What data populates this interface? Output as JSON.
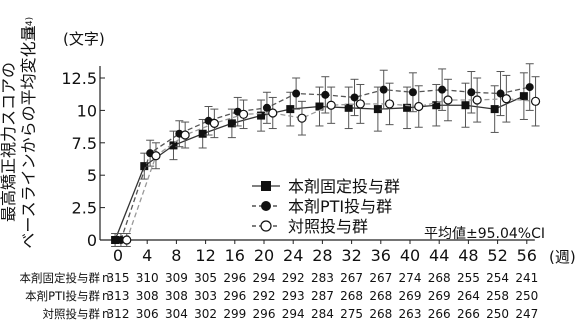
{
  "chart_data": {
    "type": "line",
    "ylabel_line1": "最高矯正視力スコアの",
    "ylabel_line2": "ベースラインからの平均変化量",
    "ylabel_note": "注4)",
    "yunit": "(文字)",
    "xunit": "(週)",
    "ylim": [
      0,
      12.5
    ],
    "yticks": [
      0,
      2.5,
      5,
      7.5,
      10,
      12.5
    ],
    "ytick_labels": [
      "0",
      "2.5",
      "5",
      "7.5",
      "10",
      "12.5"
    ],
    "x": [
      0,
      4,
      8,
      12,
      16,
      20,
      24,
      28,
      32,
      36,
      40,
      44,
      48,
      52,
      56
    ],
    "x_labels": [
      "0",
      "4",
      "8",
      "12",
      "16",
      "20",
      "24",
      "28",
      "32",
      "36",
      "40",
      "44",
      "48",
      "52",
      "56"
    ],
    "grid": false,
    "annotation": "平均値±95.04%CI",
    "legend_position": "center-right",
    "series": [
      {
        "name": "本剤固定投与群",
        "marker": "square",
        "line": "solid",
        "x_offset": -0.4,
        "values": [
          0,
          5.7,
          7.3,
          8.2,
          9.0,
          9.6,
          10.1,
          10.3,
          10.2,
          10.1,
          10.2,
          10.4,
          10.4,
          10.1,
          11.1
        ],
        "ci": [
          0.5,
          1.0,
          1.1,
          1.1,
          1.1,
          1.2,
          1.3,
          1.5,
          1.6,
          1.7,
          1.6,
          1.6,
          1.7,
          1.8,
          1.8
        ],
        "counts": [
          "315",
          "310",
          "309",
          "305",
          "296",
          "294",
          "292",
          "283",
          "267",
          "267",
          "274",
          "268",
          "255",
          "254",
          "241"
        ]
      },
      {
        "name": "本剤PTI投与群",
        "marker": "circle-filled",
        "line": "dashed",
        "x_offset": 0.4,
        "values": [
          0,
          6.7,
          8.2,
          9.2,
          9.9,
          10.2,
          11.3,
          11.2,
          11.0,
          11.6,
          11.4,
          11.6,
          11.4,
          11.3,
          11.8
        ],
        "ci": [
          0.5,
          1.0,
          1.0,
          1.1,
          1.1,
          1.2,
          1.2,
          1.4,
          1.4,
          1.5,
          1.5,
          1.6,
          1.6,
          1.7,
          1.8
        ],
        "counts": [
          "313",
          "308",
          "308",
          "303",
          "296",
          "292",
          "293",
          "287",
          "268",
          "268",
          "269",
          "269",
          "264",
          "258",
          "250"
        ]
      },
      {
        "name": "対照投与群",
        "marker": "circle-open",
        "line": "dashed",
        "x_offset": 1.2,
        "values": [
          0,
          6.5,
          8.1,
          9.0,
          9.7,
          9.8,
          9.4,
          10.4,
          10.5,
          10.5,
          10.3,
          10.8,
          10.8,
          10.9,
          10.7
        ],
        "ci": [
          0.5,
          1.0,
          1.0,
          1.1,
          1.1,
          1.2,
          1.3,
          1.4,
          1.5,
          1.6,
          1.6,
          1.6,
          1.7,
          1.8,
          1.9
        ],
        "counts": [
          "312",
          "306",
          "304",
          "302",
          "299",
          "296",
          "294",
          "284",
          "275",
          "268",
          "263",
          "266",
          "266",
          "250",
          "247"
        ]
      }
    ],
    "n_label": "n"
  }
}
